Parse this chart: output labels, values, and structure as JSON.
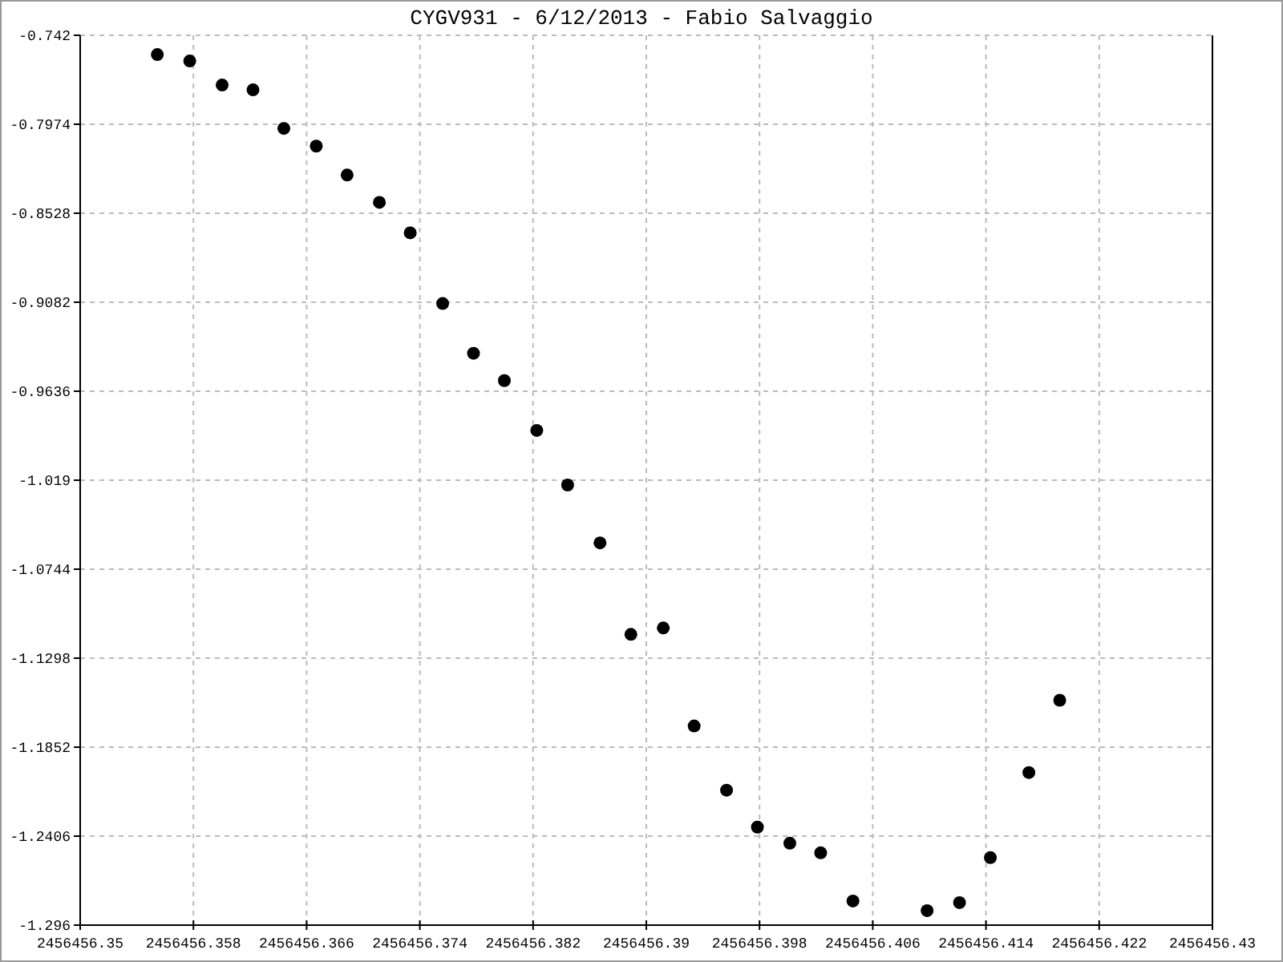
{
  "chart_data": {
    "type": "scatter",
    "title": "CYGV931 - 6/12/2013 - Fabio Salvaggio",
    "x": [
      2456456.35545,
      2456456.35774,
      2456456.36003,
      2456456.36221,
      2456456.36439,
      2456456.36668,
      2456456.36886,
      2456456.37114,
      2456456.37332,
      2456456.37561,
      2456456.37779,
      2456456.37997,
      2456456.38226,
      2456456.38444,
      2456456.38673,
      2456456.38891,
      2456456.3912,
      2456456.39338,
      2456456.39567,
      2456456.39785,
      2456456.40014,
      2456456.40232,
      2456456.4046,
      2456456.40984,
      2456456.41213,
      2456456.41431,
      2456456.41703,
      2456456.41921
    ],
    "series": [
      {
        "color": "#000000",
        "values": [
          -0.754,
          -0.758,
          -0.773,
          -0.776,
          -0.8,
          -0.811,
          -0.829,
          -0.846,
          -0.865,
          -0.909,
          -0.94,
          -0.957,
          -0.988,
          -1.022,
          -1.058,
          -1.115,
          -1.111,
          -1.172,
          -1.212,
          -1.235,
          -1.245,
          -1.251,
          -1.281,
          -1.287,
          -1.282,
          -1.254,
          -1.201,
          -1.156
        ]
      }
    ],
    "xlim": [
      2456456.35,
      2456456.43
    ],
    "xticks": [
      {
        "value": 2456456.35,
        "label": "2456456.35"
      },
      {
        "value": 2456456.358,
        "label": "2456456.358"
      },
      {
        "value": 2456456.366,
        "label": "2456456.366"
      },
      {
        "value": 2456456.374,
        "label": "2456456.374"
      },
      {
        "value": 2456456.382,
        "label": "2456456.382"
      },
      {
        "value": 2456456.39,
        "label": "2456456.39"
      },
      {
        "value": 2456456.398,
        "label": "2456456.398"
      },
      {
        "value": 2456456.406,
        "label": "2456456.406"
      },
      {
        "value": 2456456.414,
        "label": "2456456.414"
      },
      {
        "value": 2456456.422,
        "label": "2456456.422"
      },
      {
        "value": 2456456.43,
        "label": "2456456.43"
      }
    ],
    "ylim": [
      -1.296,
      -0.742
    ],
    "yticks": [
      -1.296,
      -1.2406,
      -1.1852,
      -1.1298,
      -1.0744,
      -1.019,
      -0.9636,
      -0.9082,
      -0.8528,
      -0.7974,
      -0.742
    ],
    "grid": true,
    "marker": "circle"
  }
}
